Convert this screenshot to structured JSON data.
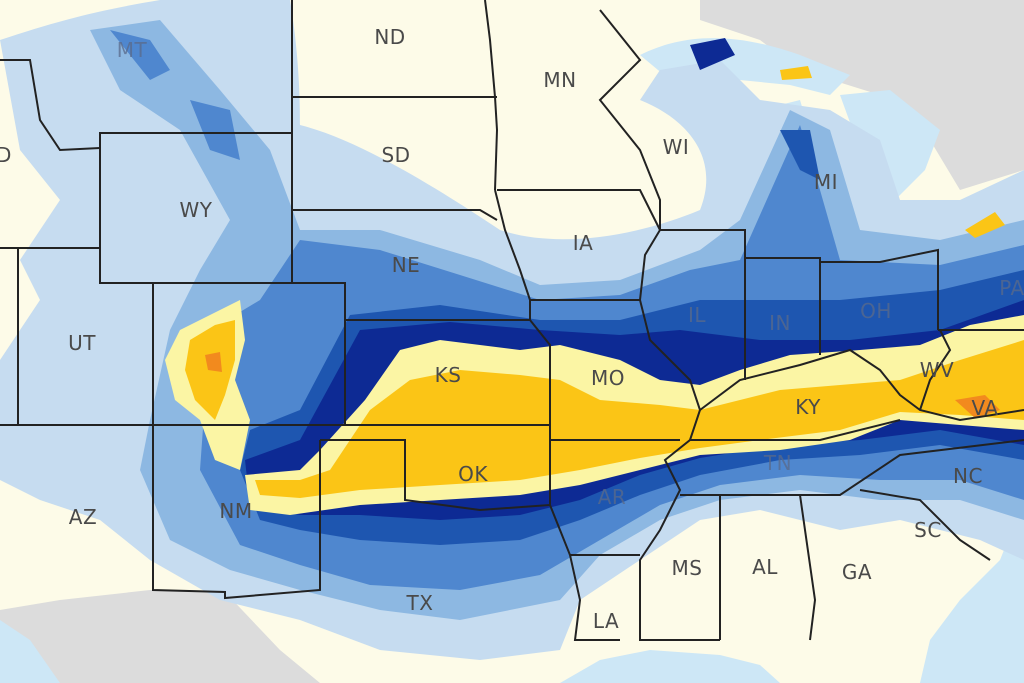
{
  "map": {
    "colors": {
      "land": "#fdfbe8",
      "outside_land": "#dcdcdc",
      "water": "#cde7f6",
      "band_1": "#c6dcf0",
      "band_2": "#8db8e2",
      "band_3": "#4f87cf",
      "band_4": "#1e56b0",
      "band_5": "#0d2a94",
      "band_6": "#fbf5a4",
      "band_7": "#fbc516",
      "band_8": "#f28a1e",
      "border": "#222222"
    },
    "state_labels": [
      {
        "id": "MT",
        "text": "MT"
      },
      {
        "id": "ND",
        "text": "ND"
      },
      {
        "id": "MN",
        "text": "MN"
      },
      {
        "id": "SD",
        "text": "SD"
      },
      {
        "id": "WI",
        "text": "WI"
      },
      {
        "id": "MI",
        "text": "MI"
      },
      {
        "id": "ID",
        "text": "D"
      },
      {
        "id": "WY",
        "text": "WY"
      },
      {
        "id": "IA",
        "text": "IA"
      },
      {
        "id": "NE",
        "text": "NE"
      },
      {
        "id": "UT",
        "text": "UT"
      },
      {
        "id": "KS",
        "text": "KS"
      },
      {
        "id": "MO",
        "text": "MO"
      },
      {
        "id": "IL",
        "text": "IL"
      },
      {
        "id": "IN",
        "text": "IN"
      },
      {
        "id": "OH",
        "text": "OH"
      },
      {
        "id": "PA",
        "text": "PA"
      },
      {
        "id": "WV",
        "text": "WV"
      },
      {
        "id": "KY",
        "text": "KY"
      },
      {
        "id": "VA",
        "text": "VA"
      },
      {
        "id": "OK",
        "text": "OK"
      },
      {
        "id": "AZ",
        "text": "AZ"
      },
      {
        "id": "NM",
        "text": "NM"
      },
      {
        "id": "AR",
        "text": "AR"
      },
      {
        "id": "TN",
        "text": "TN"
      },
      {
        "id": "NC",
        "text": "NC"
      },
      {
        "id": "SC",
        "text": "SC"
      },
      {
        "id": "TX",
        "text": "TX"
      },
      {
        "id": "MS",
        "text": "MS"
      },
      {
        "id": "AL",
        "text": "AL"
      },
      {
        "id": "GA",
        "text": "GA"
      },
      {
        "id": "LA",
        "text": "LA"
      }
    ]
  }
}
